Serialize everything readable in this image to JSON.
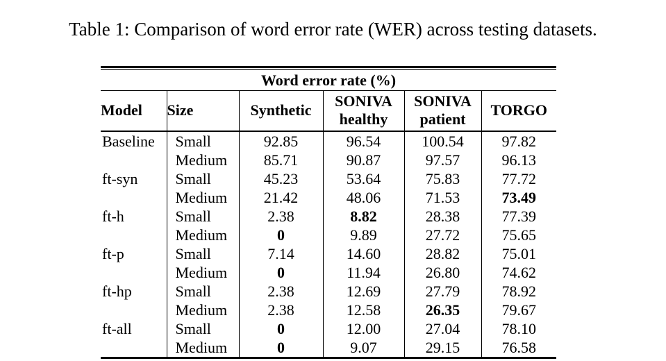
{
  "title": "Table 1: Comparison of word error rate (WER) across testing datasets.",
  "table": {
    "span_header": "Word error rate (%)",
    "columns": [
      {
        "key": "model",
        "label": "Model"
      },
      {
        "key": "size",
        "label": "Size"
      },
      {
        "key": "synthetic",
        "label": "Synthetic"
      },
      {
        "key": "soniva-healthy",
        "label": "SONIVA",
        "sub": "healthy"
      },
      {
        "key": "soniva-patient",
        "label": "SONIVA",
        "sub": "patient"
      },
      {
        "key": "torgo",
        "label": "TORGO"
      }
    ],
    "rows": [
      {
        "model": "Baseline",
        "size": "Small",
        "values": [
          "92.85",
          "96.54",
          "100.54",
          "97.82"
        ],
        "bold": [
          false,
          false,
          false,
          false
        ]
      },
      {
        "model": "",
        "size": "Medium",
        "values": [
          "85.71",
          "90.87",
          "97.57",
          "96.13"
        ],
        "bold": [
          false,
          false,
          false,
          false
        ]
      },
      {
        "model": "ft-syn",
        "size": "Small",
        "values": [
          "45.23",
          "53.64",
          "75.83",
          "77.72"
        ],
        "bold": [
          false,
          false,
          false,
          false
        ]
      },
      {
        "model": "",
        "size": "Medium",
        "values": [
          "21.42",
          "48.06",
          "71.53",
          "73.49"
        ],
        "bold": [
          false,
          false,
          false,
          true
        ]
      },
      {
        "model": "ft-h",
        "size": "Small",
        "values": [
          "2.38",
          "8.82",
          "28.38",
          "77.39"
        ],
        "bold": [
          false,
          true,
          false,
          false
        ]
      },
      {
        "model": "",
        "size": "Medium",
        "values": [
          "0",
          "9.89",
          "27.72",
          "75.65"
        ],
        "bold": [
          true,
          false,
          false,
          false
        ]
      },
      {
        "model": "ft-p",
        "size": "Small",
        "values": [
          "7.14",
          "14.60",
          "28.82",
          "75.01"
        ],
        "bold": [
          false,
          false,
          false,
          false
        ]
      },
      {
        "model": "",
        "size": "Medium",
        "values": [
          "0",
          "11.94",
          "26.80",
          "74.62"
        ],
        "bold": [
          true,
          false,
          false,
          false
        ]
      },
      {
        "model": "ft-hp",
        "size": "Small",
        "values": [
          "2.38",
          "12.69",
          "27.79",
          "78.92"
        ],
        "bold": [
          false,
          false,
          false,
          false
        ]
      },
      {
        "model": "",
        "size": "Medium",
        "values": [
          "2.38",
          "12.58",
          "26.35",
          "79.67"
        ],
        "bold": [
          false,
          false,
          true,
          false
        ]
      },
      {
        "model": "ft-all",
        "size": "Small",
        "values": [
          "0",
          "12.00",
          "27.04",
          "78.10"
        ],
        "bold": [
          true,
          false,
          false,
          false
        ]
      },
      {
        "model": "",
        "size": "Medium",
        "values": [
          "0",
          "9.07",
          "29.15",
          "76.58"
        ],
        "bold": [
          true,
          false,
          false,
          false
        ]
      }
    ]
  }
}
